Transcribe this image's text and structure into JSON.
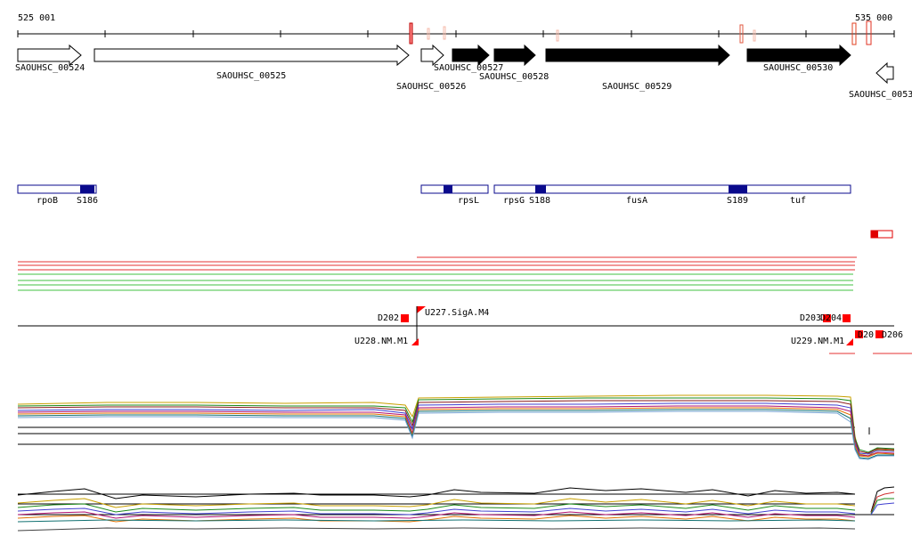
{
  "coords": {
    "start": "525 001",
    "end": "535 000"
  },
  "genes": [
    {
      "id": "SAOUHSC_00524",
      "label": "SAOUHSC_00524",
      "strand": "+",
      "filled": false
    },
    {
      "id": "SAOUHSC_00525",
      "label": "SAOUHSC_00525",
      "strand": "+",
      "filled": false
    },
    {
      "id": "SAOUHSC_00526",
      "label": "SAOUHSC_00526",
      "strand": "+",
      "filled": false
    },
    {
      "id": "SAOUHSC_00527",
      "label": "SAOUHSC_00527",
      "strand": "+",
      "filled": true
    },
    {
      "id": "SAOUHSC_00528",
      "label": "SAOUHSC_00528",
      "strand": "+",
      "filled": true
    },
    {
      "id": "SAOUHSC_00529",
      "label": "SAOUHSC_00529",
      "strand": "+",
      "filled": true
    },
    {
      "id": "SAOUHSC_00530",
      "label": "SAOUHSC_00530",
      "strand": "+",
      "filled": true
    },
    {
      "id": "SAOUHSC_0053",
      "label": "SAOUHSC_0053",
      "strand": "-",
      "filled": false
    }
  ],
  "features": [
    {
      "label": "rpoB"
    },
    {
      "label": "S186"
    },
    {
      "label": "rpsL"
    },
    {
      "label": "rpsG"
    },
    {
      "label": "S188"
    },
    {
      "label": "fusA"
    },
    {
      "label": "S189"
    },
    {
      "label": "tuf"
    }
  ],
  "regulatory": [
    {
      "label": "D202"
    },
    {
      "label": "U227.SigA.M4"
    },
    {
      "label": "U228.NM.M1"
    },
    {
      "label": "D203"
    },
    {
      "label": "D204"
    },
    {
      "label": "U229.NM.M1"
    },
    {
      "label": "D20"
    },
    {
      "label": "D206"
    }
  ],
  "colors": {
    "features_outline": "#0a0a8c",
    "marker_red": "#ff0000",
    "line_red": "#e53030",
    "line_green": "#40c040"
  }
}
